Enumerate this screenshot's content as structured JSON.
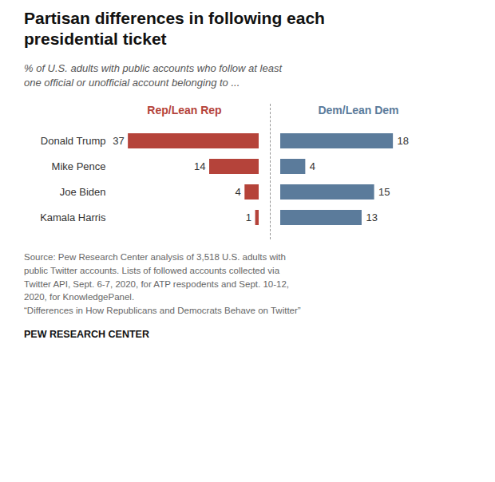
{
  "chart_data": [
    {
      "type": "bar",
      "orientation": "horizontal",
      "title": "Partisan differences in following each\npresidential ticket",
      "subtitle": "% of U.S. adults with public accounts who follow at least\none official or unofficial account belonging to ...",
      "annotations": [
        "Source: Pew Research Center analysis of 3,518 U.S. adults with\npublic Twitter accounts. Lists of followed accounts collected via\nTwitter API, Sept. 6-7, 2020, for ATP respodents and Sept. 10-12,\n2020, for KnowledgePanel.\n“Differences in How Republicans and Democrats Behave on Twitter”",
        "PEW RESEARCH CENTER"
      ],
      "categories": [
        "Donald Trump",
        "Mike Pence",
        "Joe Biden",
        "Kamala Harris"
      ],
      "series": [
        {
          "name": "Rep/Lean Rep",
          "color": "#b5433a",
          "values": [
            37,
            14,
            4,
            1
          ]
        }
      ],
      "xlim": [
        42,
        0
      ],
      "grid": false,
      "data_labels": true,
      "tick_labels": "y"
    },
    {
      "type": "bar",
      "orientation": "horizontal",
      "categories": [
        "Donald Trump",
        "Mike Pence",
        "Joe Biden",
        "Kamala Harris"
      ],
      "series": [
        {
          "name": "Dem/Lean Dem",
          "color": "#5b7b9b",
          "values": [
            18,
            4,
            15,
            13
          ]
        }
      ],
      "xlim": [
        0,
        25
      ],
      "grid": false,
      "data_labels": true,
      "tick_labels": false
    }
  ]
}
